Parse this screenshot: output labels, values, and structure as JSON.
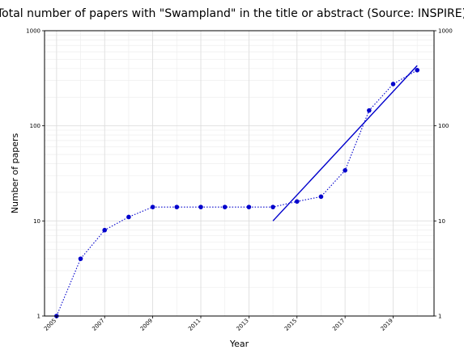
{
  "chart_data": {
    "type": "line",
    "title": "Total number of papers with \"Swampland\" in the title or abstract (Source: INSPIRE)",
    "xlabel": "Year",
    "ylabel": "Number of papers",
    "yscale": "log",
    "xlim": [
      2004.5,
      2020.7
    ],
    "ylim": [
      1,
      1000
    ],
    "x_ticks": [
      2005,
      2007,
      2009,
      2011,
      2013,
      2015,
      2017,
      2019
    ],
    "x_tick_labels": [
      "2005",
      "2007",
      "2009",
      "2011",
      "2013",
      "2015",
      "2017",
      "2019"
    ],
    "y_ticks": [
      1,
      10,
      100,
      1000
    ],
    "y_tick_labels": [
      "1",
      "10",
      "100",
      "1000"
    ],
    "y_ticks_right": true,
    "grid": true,
    "grid_minor": true,
    "colors": {
      "data": "#0000cc",
      "fit": "#0000cc",
      "grid": "#dddddd",
      "axis": "#000000"
    },
    "series": [
      {
        "style": "dotted-markers",
        "x": [
          2005,
          2006,
          2007,
          2008,
          2009,
          2010,
          2011,
          2012,
          2013,
          2014,
          2015,
          2016,
          2017,
          2018,
          2019,
          2020
        ],
        "y": [
          1,
          4,
          8,
          11,
          14,
          14,
          14,
          14,
          14,
          14,
          16,
          18,
          34,
          145,
          275,
          385
        ]
      },
      {
        "style": "solid",
        "x": [
          2014,
          2020
        ],
        "y": [
          10,
          430
        ]
      }
    ]
  }
}
